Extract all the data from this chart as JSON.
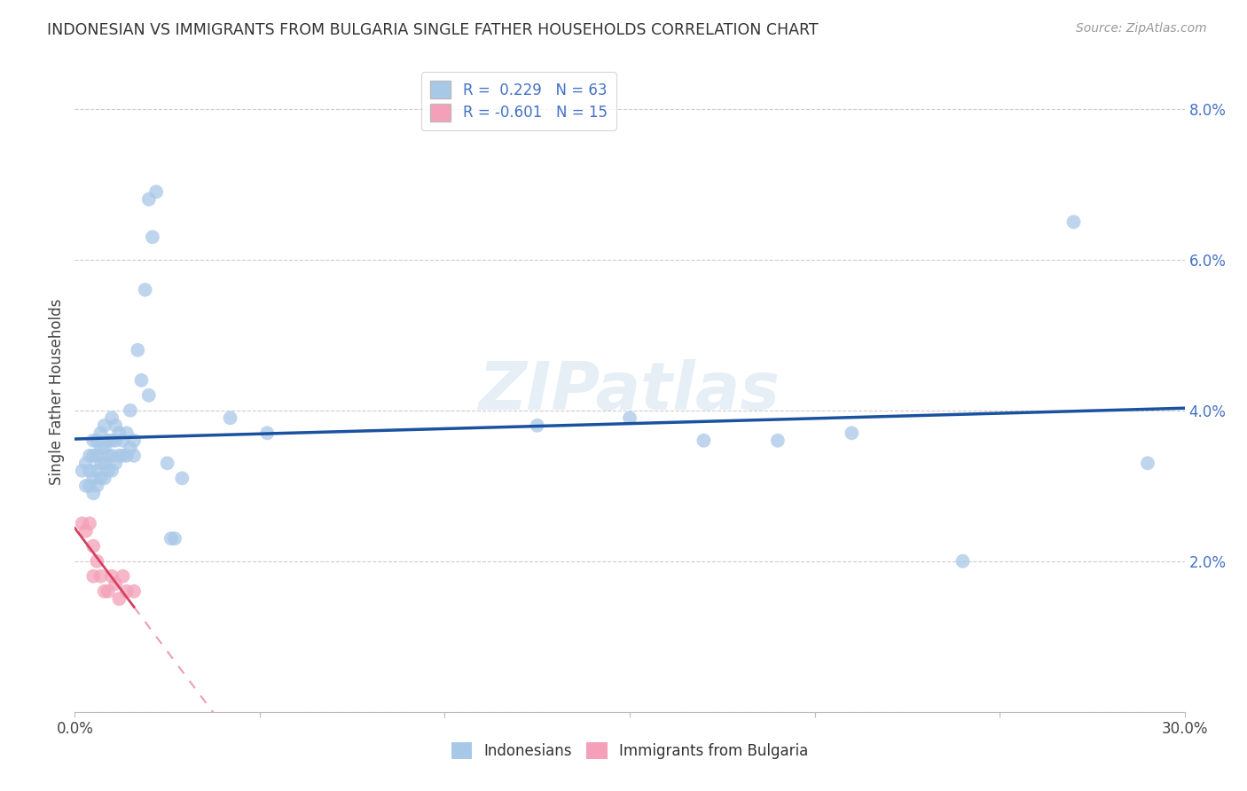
{
  "title": "INDONESIAN VS IMMIGRANTS FROM BULGARIA SINGLE FATHER HOUSEHOLDS CORRELATION CHART",
  "source": "Source: ZipAtlas.com",
  "ylabel": "Single Father Households",
  "xlim": [
    0.0,
    0.3
  ],
  "ylim": [
    0.0,
    0.085
  ],
  "yticks": [
    0.0,
    0.02,
    0.04,
    0.06,
    0.08
  ],
  "ytick_labels": [
    "",
    "2.0%",
    "4.0%",
    "6.0%",
    "8.0%"
  ],
  "xticks": [
    0.0,
    0.05,
    0.1,
    0.15,
    0.2,
    0.25,
    0.3
  ],
  "xtick_labels": [
    "0.0%",
    "",
    "",
    "",
    "",
    "",
    "30.0%"
  ],
  "R_indonesian": 0.229,
  "N_indonesian": 63,
  "R_bulgaria": -0.601,
  "N_bulgaria": 15,
  "indonesian_color": "#a8c8e8",
  "bulgaria_color": "#f4a0b8",
  "trend_indonesian_color": "#1a52a0",
  "trend_bulgaria_color": "#d44060",
  "watermark": "ZIPatlas",
  "legend_label_1": "Indonesians",
  "legend_label_2": "Immigrants from Bulgaria",
  "indonesian_points": [
    [
      0.002,
      0.032
    ],
    [
      0.003,
      0.03
    ],
    [
      0.003,
      0.033
    ],
    [
      0.004,
      0.03
    ],
    [
      0.004,
      0.032
    ],
    [
      0.004,
      0.034
    ],
    [
      0.005,
      0.029
    ],
    [
      0.005,
      0.031
    ],
    [
      0.005,
      0.034
    ],
    [
      0.005,
      0.036
    ],
    [
      0.006,
      0.03
    ],
    [
      0.006,
      0.032
    ],
    [
      0.006,
      0.034
    ],
    [
      0.006,
      0.036
    ],
    [
      0.007,
      0.031
    ],
    [
      0.007,
      0.033
    ],
    [
      0.007,
      0.035
    ],
    [
      0.007,
      0.037
    ],
    [
      0.008,
      0.031
    ],
    [
      0.008,
      0.033
    ],
    [
      0.008,
      0.035
    ],
    [
      0.008,
      0.038
    ],
    [
      0.009,
      0.032
    ],
    [
      0.009,
      0.034
    ],
    [
      0.009,
      0.036
    ],
    [
      0.01,
      0.032
    ],
    [
      0.01,
      0.034
    ],
    [
      0.01,
      0.036
    ],
    [
      0.01,
      0.039
    ],
    [
      0.011,
      0.033
    ],
    [
      0.011,
      0.036
    ],
    [
      0.011,
      0.038
    ],
    [
      0.012,
      0.034
    ],
    [
      0.012,
      0.037
    ],
    [
      0.013,
      0.034
    ],
    [
      0.013,
      0.036
    ],
    [
      0.014,
      0.034
    ],
    [
      0.014,
      0.037
    ],
    [
      0.015,
      0.035
    ],
    [
      0.015,
      0.04
    ],
    [
      0.016,
      0.034
    ],
    [
      0.016,
      0.036
    ],
    [
      0.017,
      0.048
    ],
    [
      0.018,
      0.044
    ],
    [
      0.019,
      0.056
    ],
    [
      0.02,
      0.042
    ],
    [
      0.02,
      0.068
    ],
    [
      0.021,
      0.063
    ],
    [
      0.022,
      0.069
    ],
    [
      0.025,
      0.033
    ],
    [
      0.026,
      0.023
    ],
    [
      0.027,
      0.023
    ],
    [
      0.029,
      0.031
    ],
    [
      0.042,
      0.039
    ],
    [
      0.052,
      0.037
    ],
    [
      0.125,
      0.038
    ],
    [
      0.15,
      0.039
    ],
    [
      0.17,
      0.036
    ],
    [
      0.19,
      0.036
    ],
    [
      0.21,
      0.037
    ],
    [
      0.24,
      0.02
    ],
    [
      0.27,
      0.065
    ],
    [
      0.29,
      0.033
    ]
  ],
  "bulgaria_points": [
    [
      0.002,
      0.025
    ],
    [
      0.003,
      0.024
    ],
    [
      0.004,
      0.025
    ],
    [
      0.005,
      0.022
    ],
    [
      0.005,
      0.018
    ],
    [
      0.006,
      0.02
    ],
    [
      0.007,
      0.018
    ],
    [
      0.008,
      0.016
    ],
    [
      0.009,
      0.016
    ],
    [
      0.01,
      0.018
    ],
    [
      0.011,
      0.017
    ],
    [
      0.012,
      0.015
    ],
    [
      0.013,
      0.018
    ],
    [
      0.014,
      0.016
    ],
    [
      0.016,
      0.016
    ]
  ]
}
